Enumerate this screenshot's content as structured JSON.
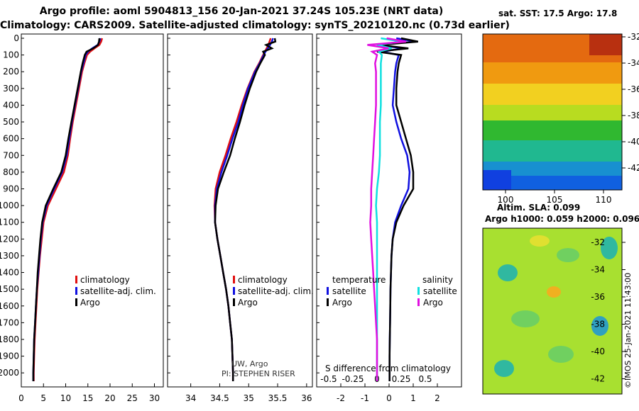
{
  "header": {
    "title_line1": "Argo profile: aoml 5904813_156 20-Jan-2021 37.24S 105.23E (NRT data)",
    "title_line2": "Climatology: CARS2009. Satellite-adjusted climatology: synTS_20210120.nc (0.73d earlier)"
  },
  "colors": {
    "climatology": "#e01010",
    "satellite": "#1010e0",
    "argo": "#000000",
    "sat_temperature": "#1010e0",
    "sat_salinity": "#10e0e0",
    "argo_salinity": "#e010e0"
  },
  "chart_data": [
    {
      "type": "line",
      "panel": "temperature",
      "ylabel": "",
      "ylim": [
        2060,
        0
      ],
      "xlim": [
        0,
        32
      ],
      "xticks": [
        "0",
        "5",
        "10",
        "15",
        "20",
        "25",
        "30"
      ],
      "yticks": [
        "0",
        "100",
        "200",
        "300",
        "400",
        "500",
        "600",
        "700",
        "800",
        "900",
        "1000",
        "1100",
        "1200",
        "1300",
        "1400",
        "1500",
        "1600",
        "1700",
        "1800",
        "1900",
        "2000"
      ],
      "legend": [
        "climatology",
        "satellite-adj. clim.",
        "Argo"
      ],
      "depth": [
        0,
        20,
        40,
        60,
        80,
        100,
        150,
        200,
        300,
        400,
        500,
        600,
        700,
        800,
        900,
        1000,
        1100,
        1200,
        1300,
        1400,
        1500,
        1600,
        1700,
        1800,
        1900,
        2000,
        2050
      ],
      "series": [
        {
          "name": "climatology",
          "values": [
            18.2,
            18.0,
            17.6,
            16.5,
            15.5,
            14.8,
            14.2,
            13.7,
            13.0,
            12.3,
            11.6,
            11.0,
            10.5,
            9.6,
            7.8,
            6.0,
            5.0,
            4.6,
            4.2,
            3.9,
            3.6,
            3.4,
            3.2,
            3.0,
            2.9,
            2.8,
            2.8
          ]
        },
        {
          "name": "satellite-adj. clim.",
          "values": [
            17.8,
            17.6,
            17.2,
            16.0,
            15.0,
            14.5,
            14.0,
            13.5,
            12.8,
            12.1,
            11.4,
            10.8,
            10.2,
            9.2,
            7.4,
            5.7,
            4.8,
            4.4,
            4.1,
            3.8,
            3.5,
            3.3,
            3.1,
            2.9,
            2.8,
            2.7,
            2.7
          ]
        },
        {
          "name": "Argo",
          "values": [
            17.6,
            17.5,
            17.3,
            16.2,
            14.7,
            14.3,
            13.8,
            13.4,
            12.7,
            12.0,
            11.3,
            10.6,
            10.0,
            9.0,
            7.2,
            5.5,
            4.7,
            4.3,
            4.0,
            3.7,
            3.5,
            3.3,
            3.1,
            2.9,
            2.8,
            2.7,
            2.7
          ]
        }
      ]
    },
    {
      "type": "line",
      "panel": "salinity",
      "ylim": [
        2060,
        0
      ],
      "xlim": [
        33.6,
        36.1
      ],
      "xticks": [
        "34",
        "34.5",
        "35",
        "35.5",
        "36"
      ],
      "legend": [
        "climatology",
        "satellite-adj. clim.",
        "Argo"
      ],
      "annotation": [
        "UW, Argo",
        "PI: STEPHEN RISER"
      ],
      "depth": [
        0,
        20,
        40,
        60,
        80,
        100,
        150,
        200,
        300,
        400,
        500,
        600,
        700,
        800,
        900,
        1000,
        1100,
        1200,
        1300,
        1400,
        1500,
        1600,
        1700,
        1800,
        1900,
        2000,
        2050
      ],
      "series": [
        {
          "name": "climatology",
          "values": [
            35.38,
            35.36,
            35.34,
            35.31,
            35.28,
            35.25,
            35.18,
            35.1,
            34.98,
            34.88,
            34.79,
            34.69,
            34.6,
            34.5,
            34.43,
            34.41,
            34.42,
            34.46,
            34.51,
            34.56,
            34.61,
            34.65,
            34.68,
            34.71,
            34.72,
            34.73,
            34.73
          ]
        },
        {
          "name": "satellite-adj. clim.",
          "values": [
            35.42,
            35.4,
            35.37,
            35.33,
            35.29,
            35.26,
            35.19,
            35.11,
            34.99,
            34.9,
            34.82,
            34.72,
            34.63,
            34.53,
            34.45,
            34.42,
            34.42,
            34.46,
            34.51,
            34.56,
            34.61,
            34.65,
            34.68,
            34.71,
            34.72,
            34.73,
            34.73
          ]
        },
        {
          "name": "Argo",
          "values": [
            35.45,
            35.46,
            35.3,
            35.4,
            35.25,
            35.28,
            35.2,
            35.13,
            35.02,
            34.93,
            34.85,
            34.76,
            34.68,
            34.57,
            34.47,
            34.43,
            34.42,
            34.46,
            34.51,
            34.56,
            34.61,
            34.65,
            34.68,
            34.71,
            34.72,
            34.73,
            34.73
          ]
        }
      ]
    },
    {
      "type": "line",
      "panel": "difference",
      "xlabel": "S difference from climatology",
      "ylim": [
        2060,
        0
      ],
      "xlim": [
        -3,
        3
      ],
      "xticks": [
        "-2",
        "-1",
        "0",
        "1",
        "2"
      ],
      "xticks_salinity": [
        "-0.5",
        "-0.25",
        "0",
        "0.25",
        "0.5"
      ],
      "legend_temperature": [
        "temperature",
        "satellite",
        "Argo"
      ],
      "legend_salinity": [
        "salinity",
        "satellite",
        "Argo"
      ],
      "depth": [
        0,
        20,
        40,
        60,
        80,
        100,
        150,
        200,
        300,
        400,
        500,
        600,
        700,
        800,
        900,
        1000,
        1100,
        1200,
        1300,
        1400,
        1500,
        1600,
        1700,
        1800,
        1900,
        2000,
        2050
      ],
      "series": [
        {
          "name": "temperature satellite",
          "values": [
            0.3,
            1.1,
            -0.5,
            0.6,
            -0.3,
            0.4,
            0.3,
            0.25,
            0.2,
            0.15,
            0.3,
            0.5,
            0.75,
            0.85,
            0.8,
            0.5,
            0.25,
            0.15,
            0.1,
            0.08,
            0.06,
            0.05,
            0.04,
            0.03,
            0.02,
            0.02,
            0.02
          ]
        },
        {
          "name": "temperature Argo",
          "values": [
            0.5,
            1.2,
            -0.4,
            0.8,
            -0.5,
            0.5,
            0.4,
            0.35,
            0.3,
            0.3,
            0.5,
            0.7,
            0.9,
            1.0,
            1.0,
            0.6,
            0.3,
            0.15,
            0.1,
            0.08,
            0.06,
            0.05,
            0.04,
            0.03,
            0.02,
            0.02,
            0.02
          ]
        },
        {
          "name": "salinity satellite",
          "values": [
            0.04,
            0.25,
            0.0,
            0.15,
            0.02,
            0.05,
            0.04,
            0.04,
            0.04,
            0.04,
            0.03,
            0.03,
            0.03,
            0.02,
            0.0,
            -0.01,
            0.0,
            0.0,
            0.0,
            0.0,
            0.0,
            0.0,
            0.0,
            0.0,
            0.0,
            0.0,
            0.0
          ]
        },
        {
          "name": "salinity Argo",
          "values": [
            0.1,
            0.3,
            -0.1,
            0.12,
            -0.05,
            0.0,
            -0.02,
            -0.01,
            -0.01,
            -0.01,
            -0.02,
            -0.03,
            -0.04,
            -0.05,
            -0.06,
            -0.06,
            -0.07,
            -0.06,
            -0.05,
            -0.04,
            -0.03,
            -0.02,
            -0.01,
            0.0,
            0.0,
            0.0,
            0.0
          ]
        }
      ]
    },
    {
      "type": "heatmap",
      "panel": "sst_map",
      "title": "sat. SST: 17.5 Argo: 17.8",
      "xticks": [
        "100",
        "105",
        "110"
      ],
      "yticks": [
        "-32",
        "-34",
        "-36",
        "-38",
        "-40",
        "-42"
      ]
    },
    {
      "type": "heatmap",
      "panel": "sla_map",
      "title_line1": "Altim. SLA: 0.099",
      "title_line2": "Argo h1000: 0.059 h2000: 0.096",
      "yticks": [
        "-32",
        "-34",
        "-36",
        "-38",
        "-40",
        "-42"
      ]
    }
  ],
  "footer": {
    "credit": "©IMOS 25-Jan-2021 11:43:00"
  }
}
